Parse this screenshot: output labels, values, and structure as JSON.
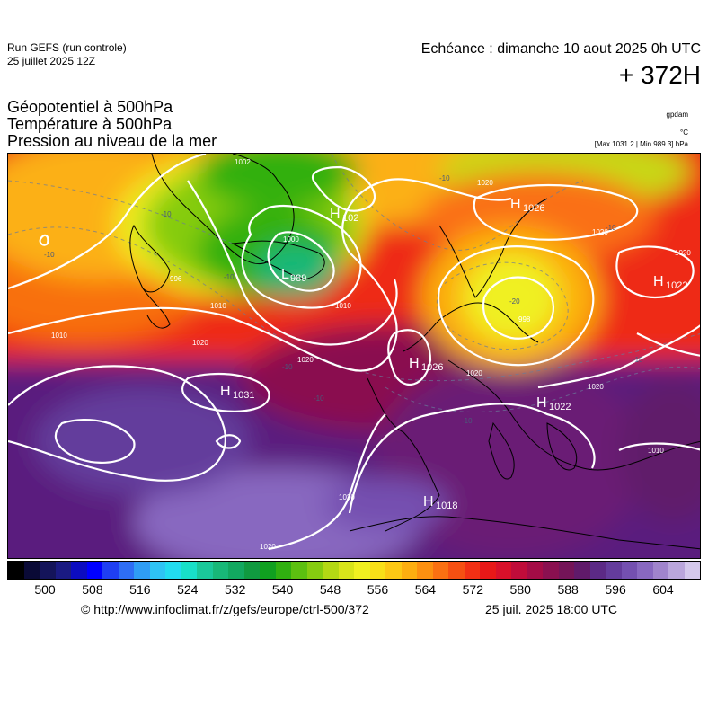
{
  "header": {
    "run_title": "Run GEFS (run controle)",
    "run_date": "25 juillet 2025 12Z",
    "echeance": "Echéance : dimanche 10 aout 2025 0h UTC",
    "horizon": "+ 372H"
  },
  "fields": [
    "Géopotentiel à 500hPa",
    "Température à 500hPa",
    "Pression au niveau de la mer"
  ],
  "units": {
    "geopotential": "gpdam",
    "temperature": "°C",
    "maxmin": "[Max 1031.2 | Min 989.3] hPa"
  },
  "map": {
    "pressure_centers": [
      {
        "type": "H",
        "value": "1026",
        "name": "center-h-1026-scandinavia-north"
      },
      {
        "type": "H",
        "value": "1022",
        "name": "center-h-1022-east"
      },
      {
        "type": "H",
        "value": "1026",
        "name": "center-h-1026-france"
      },
      {
        "type": "H",
        "value": "1022",
        "name": "center-h-1022-balkans"
      },
      {
        "type": "H",
        "value": "1031",
        "name": "center-h-1031-atlantic"
      },
      {
        "type": "H",
        "value": "1018",
        "name": "center-h-1018-sahara"
      },
      {
        "type": "H",
        "value": "102",
        "name": "center-h-102-greenland"
      },
      {
        "type": "L",
        "value": "989",
        "name": "center-l-989-iceland"
      }
    ],
    "isobar_labels": [
      "1020",
      "1020",
      "1020",
      "1020",
      "1020",
      "1020",
      "1020",
      "1010",
      "1010",
      "1000",
      "1010",
      "1010",
      "1020",
      "998",
      "996",
      "1002",
      "1020"
    ],
    "isotherm_labels": [
      "-10",
      "-10",
      "-10",
      "-10",
      "-10",
      "-10",
      "-10",
      "-10",
      "-20",
      "-10"
    ]
  },
  "colorbar": {
    "colors": [
      "#000000",
      "#0a0a36",
      "#14145a",
      "#1a1a82",
      "#0c0cc0",
      "#0000ff",
      "#1f3ff2",
      "#2e6ef5",
      "#2f9df5",
      "#2ec4f5",
      "#22dcf0",
      "#18e0c8",
      "#1ac89a",
      "#18b878",
      "#12a860",
      "#109a40",
      "#10a020",
      "#30b010",
      "#5cc010",
      "#86cc10",
      "#b4d814",
      "#d8e41a",
      "#f0f020",
      "#f8e018",
      "#fcc814",
      "#fcae10",
      "#fc9010",
      "#fa7012",
      "#f65012",
      "#f23014",
      "#e81818",
      "#d8102a",
      "#c00c3a",
      "#a40c46",
      "#8a1050",
      "#741458",
      "#601a6a",
      "#5c2a86",
      "#643c9c",
      "#7450b0",
      "#8868c0",
      "#a084cc",
      "#baa6dc",
      "#d4c8ec"
    ],
    "ticks": [
      "500",
      "508",
      "516",
      "524",
      "532",
      "540",
      "548",
      "556",
      "564",
      "572",
      "580",
      "588",
      "596",
      "604"
    ]
  },
  "footer": {
    "credit": "© http://www.infoclimat.fr/z/gefs/europe/ctrl-500/372",
    "runtime": "25 juil. 2025 18:00 UTC"
  }
}
